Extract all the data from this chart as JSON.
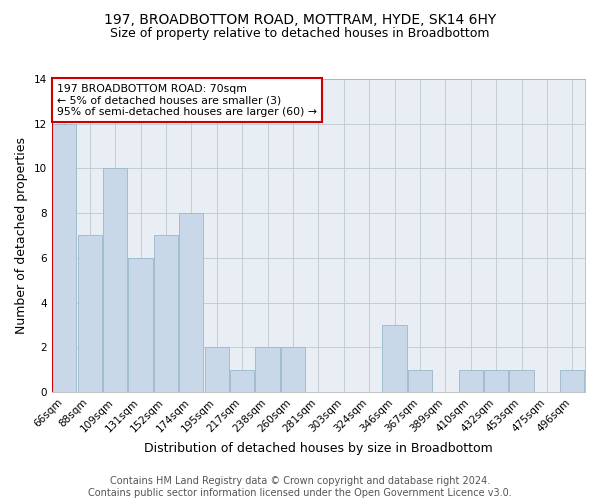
{
  "title": "197, BROADBOTTOM ROAD, MOTTRAM, HYDE, SK14 6HY",
  "subtitle": "Size of property relative to detached houses in Broadbottom",
  "xlabel": "Distribution of detached houses by size in Broadbottom",
  "ylabel": "Number of detached properties",
  "categories": [
    "66sqm",
    "88sqm",
    "109sqm",
    "131sqm",
    "152sqm",
    "174sqm",
    "195sqm",
    "217sqm",
    "238sqm",
    "260sqm",
    "281sqm",
    "303sqm",
    "324sqm",
    "346sqm",
    "367sqm",
    "389sqm",
    "410sqm",
    "432sqm",
    "453sqm",
    "475sqm",
    "496sqm"
  ],
  "values": [
    12,
    7,
    10,
    6,
    7,
    8,
    2,
    1,
    2,
    2,
    0,
    0,
    0,
    3,
    1,
    0,
    1,
    1,
    1,
    0,
    1
  ],
  "bar_color": "#c8d8e8",
  "bar_edge_color": "#9ab8cc",
  "vline_color": "#cc0000",
  "annotation_text": "197 BROADBOTTOM ROAD: 70sqm\n← 5% of detached houses are smaller (3)\n95% of semi-detached houses are larger (60) →",
  "annotation_box_color": "#ffffff",
  "annotation_box_edge_color": "#cc0000",
  "ylim": [
    0,
    14
  ],
  "yticks": [
    0,
    2,
    4,
    6,
    8,
    10,
    12,
    14
  ],
  "plot_bg_color": "#e8eef4",
  "footer": "Contains HM Land Registry data © Crown copyright and database right 2024.\nContains public sector information licensed under the Open Government Licence v3.0.",
  "title_fontsize": 10,
  "subtitle_fontsize": 9,
  "axis_label_fontsize": 9,
  "tick_fontsize": 7.5,
  "annotation_fontsize": 7.8,
  "footer_fontsize": 7
}
